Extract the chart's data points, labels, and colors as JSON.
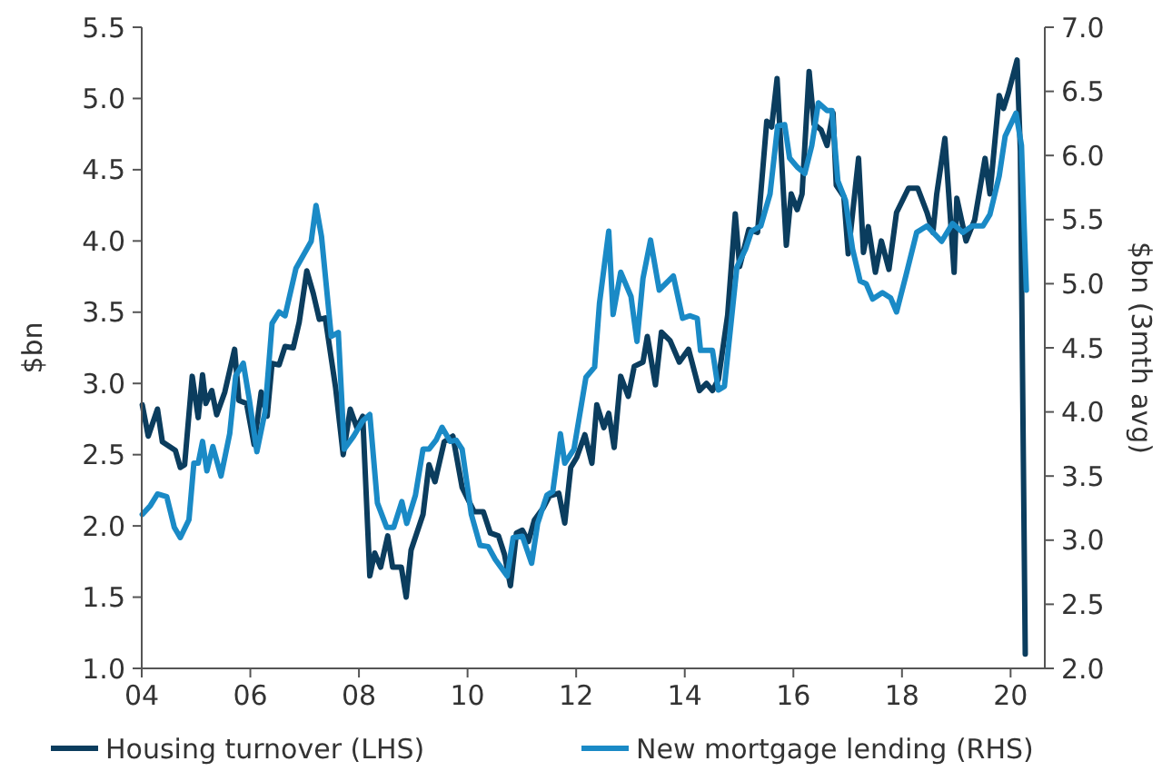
{
  "chart_data": {
    "type": "line",
    "ylabel": "$bn",
    "y2label": "$bn (3mth avg)",
    "legend": "bottom",
    "grid": false,
    "xlim": [
      2004,
      2020.63
    ],
    "xticks": [
      {
        "value": 2004,
        "label": "04"
      },
      {
        "value": 2006,
        "label": "06"
      },
      {
        "value": 2008,
        "label": "08"
      },
      {
        "value": 2010,
        "label": "10"
      },
      {
        "value": 2012,
        "label": "12"
      },
      {
        "value": 2014,
        "label": "14"
      },
      {
        "value": 2016,
        "label": "16"
      },
      {
        "value": 2018,
        "label": "18"
      },
      {
        "value": 2020,
        "label": "20"
      }
    ],
    "ylim": [
      1,
      5.5
    ],
    "yticks": [
      {
        "value": 1,
        "label": "1.0"
      },
      1.5,
      {
        "value": 2,
        "label": "2.0"
      },
      2.5,
      {
        "value": 3,
        "label": "3.0"
      },
      3.5,
      {
        "value": 4,
        "label": "4.0"
      },
      4.5,
      {
        "value": 5,
        "label": "5.0"
      },
      5.5
    ],
    "y2lim": [
      2,
      7
    ],
    "y2ticks": [
      {
        "value": 2,
        "label": "2.0"
      },
      2.5,
      {
        "value": 3,
        "label": "3.0"
      },
      3.5,
      {
        "value": 4,
        "label": "4.0"
      },
      4.5,
      {
        "value": 5,
        "label": "5.0"
      },
      5.5,
      {
        "value": 6,
        "label": "6.0"
      },
      6.5,
      {
        "value": 7,
        "label": "7.0"
      }
    ],
    "series": [
      {
        "name": "Housing turnover (LHS)",
        "color": "#0b3d5e",
        "x": [
          2004.01,
          2004.12,
          2004.29,
          2004.38,
          2004.62,
          2004.71,
          2004.79,
          2004.93,
          2005.04,
          2005.12,
          2005.18,
          2005.29,
          2005.38,
          2005.53,
          2005.71,
          2005.79,
          2005.93,
          2006.07,
          2006.2,
          2006.31,
          2006.4,
          2006.53,
          2006.64,
          2006.79,
          2006.9,
          2007.04,
          2007.16,
          2007.27,
          2007.38,
          2007.57,
          2007.71,
          2007.84,
          2007.96,
          2008.07,
          2008.2,
          2008.29,
          2008.4,
          2008.53,
          2008.62,
          2008.78,
          2008.87,
          2008.96,
          2009.18,
          2009.29,
          2009.4,
          2009.57,
          2009.73,
          2009.9,
          2010.12,
          2010.29,
          2010.42,
          2010.57,
          2010.68,
          2010.79,
          2010.9,
          2011.01,
          2011.12,
          2011.23,
          2011.4,
          2011.51,
          2011.68,
          2011.79,
          2011.9,
          2012.01,
          2012.16,
          2012.29,
          2012.38,
          2012.51,
          2012.6,
          2012.7,
          2012.82,
          2012.96,
          2013.07,
          2013.23,
          2013.31,
          2013.46,
          2013.57,
          2013.73,
          2013.9,
          2014.07,
          2014.27,
          2014.4,
          2014.51,
          2014.62,
          2014.79,
          2014.93,
          2015.01,
          2015.18,
          2015.34,
          2015.51,
          2015.6,
          2015.7,
          2015.87,
          2015.96,
          2016.07,
          2016.16,
          2016.29,
          2016.38,
          2016.51,
          2016.62,
          2016.73,
          2016.79,
          2016.93,
          2017.01,
          2017.2,
          2017.29,
          2017.38,
          2017.51,
          2017.62,
          2017.76,
          2017.9,
          2018.12,
          2018.29,
          2018.46,
          2018.57,
          2018.64,
          2018.79,
          2018.96,
          2019.01,
          2019.18,
          2019.34,
          2019.53,
          2019.62,
          2019.79,
          2019.87,
          2019.96,
          2020.12,
          2020.18,
          2020.27
        ],
        "values": [
          2.85,
          2.63,
          2.82,
          2.59,
          2.53,
          2.41,
          2.43,
          3.05,
          2.76,
          3.06,
          2.86,
          2.95,
          2.78,
          2.94,
          3.24,
          2.88,
          2.86,
          2.57,
          2.94,
          2.77,
          3.14,
          3.13,
          3.26,
          3.25,
          3.43,
          3.79,
          3.63,
          3.45,
          3.46,
          2.97,
          2.5,
          2.82,
          2.69,
          2.77,
          1.65,
          1.81,
          1.71,
          1.93,
          1.71,
          1.71,
          1.5,
          1.83,
          2.08,
          2.43,
          2.31,
          2.59,
          2.63,
          2.27,
          2.1,
          2.1,
          1.95,
          1.93,
          1.8,
          1.58,
          1.95,
          1.97,
          1.89,
          2.04,
          2.13,
          2.21,
          2.23,
          2.02,
          2.41,
          2.48,
          2.64,
          2.44,
          2.85,
          2.69,
          2.79,
          2.55,
          3.05,
          2.91,
          3.12,
          3.15,
          3.33,
          2.99,
          3.36,
          3.3,
          3.15,
          3.24,
          2.95,
          3.0,
          2.95,
          3.03,
          3.48,
          4.19,
          3.82,
          4.08,
          4.06,
          4.84,
          4.8,
          5.14,
          3.97,
          4.33,
          4.22,
          4.33,
          5.19,
          4.82,
          4.78,
          4.67,
          4.9,
          4.39,
          4.31,
          3.91,
          4.58,
          3.92,
          4.1,
          3.78,
          4.0,
          3.8,
          4.2,
          4.37,
          4.37,
          4.2,
          4.06,
          4.33,
          4.72,
          3.78,
          4.3,
          4.0,
          4.15,
          4.58,
          4.33,
          5.02,
          4.93,
          5.04,
          5.27,
          4.63,
          1.1
        ]
      },
      {
        "name": "New mortgage lending (RHS)",
        "color": "#1a8ac6",
        "axis": "y2",
        "x": [
          2004.01,
          2004.16,
          2004.29,
          2004.46,
          2004.6,
          2004.71,
          2004.87,
          2004.96,
          2005.04,
          2005.12,
          2005.2,
          2005.31,
          2005.46,
          2005.62,
          2005.73,
          2005.87,
          2005.98,
          2006.12,
          2006.27,
          2006.4,
          2006.53,
          2006.64,
          2006.84,
          2007.12,
          2007.21,
          2007.31,
          2007.49,
          2007.62,
          2007.73,
          2007.9,
          2008.07,
          2008.2,
          2008.34,
          2008.51,
          2008.64,
          2008.79,
          2008.88,
          2009.04,
          2009.18,
          2009.29,
          2009.42,
          2009.53,
          2009.68,
          2009.79,
          2009.9,
          2010.07,
          2010.23,
          2010.38,
          2010.51,
          2010.73,
          2010.84,
          2011.01,
          2011.18,
          2011.29,
          2011.46,
          2011.57,
          2011.71,
          2011.79,
          2011.96,
          2012.18,
          2012.34,
          2012.43,
          2012.6,
          2012.68,
          2012.82,
          2013.01,
          2013.12,
          2013.23,
          2013.37,
          2013.53,
          2013.79,
          2013.96,
          2014.09,
          2014.23,
          2014.29,
          2014.51,
          2014.62,
          2014.73,
          2014.96,
          2015.12,
          2015.23,
          2015.4,
          2015.57,
          2015.71,
          2015.84,
          2015.93,
          2016.07,
          2016.21,
          2016.34,
          2016.46,
          2016.62,
          2016.71,
          2016.82,
          2016.96,
          2017.09,
          2017.23,
          2017.34,
          2017.46,
          2017.64,
          2017.79,
          2017.9,
          2018.07,
          2018.27,
          2018.46,
          2018.73,
          2018.93,
          2019.12,
          2019.29,
          2019.49,
          2019.62,
          2019.79,
          2019.9,
          2020.1,
          2020.2,
          2020.29
        ],
        "values": [
          3.2,
          3.27,
          3.36,
          3.34,
          3.1,
          3.02,
          3.16,
          3.6,
          3.6,
          3.77,
          3.54,
          3.73,
          3.5,
          3.83,
          4.28,
          4.38,
          4.1,
          3.69,
          4.0,
          4.69,
          4.78,
          4.75,
          5.12,
          5.33,
          5.61,
          5.37,
          4.59,
          4.62,
          3.71,
          3.81,
          3.93,
          3.98,
          3.29,
          3.1,
          3.1,
          3.3,
          3.13,
          3.35,
          3.71,
          3.71,
          3.78,
          3.88,
          3.77,
          3.78,
          3.71,
          3.2,
          2.96,
          2.95,
          2.85,
          2.72,
          3.02,
          3.03,
          2.82,
          3.13,
          3.35,
          3.38,
          3.83,
          3.6,
          3.71,
          4.27,
          4.35,
          4.85,
          5.41,
          4.76,
          5.09,
          4.9,
          4.55,
          5.04,
          5.34,
          4.95,
          5.06,
          4.73,
          4.75,
          4.73,
          4.48,
          4.48,
          4.17,
          4.2,
          5.13,
          5.27,
          5.41,
          5.45,
          5.7,
          6.23,
          6.24,
          5.98,
          5.91,
          5.86,
          6.08,
          6.41,
          6.35,
          6.35,
          5.8,
          5.65,
          5.27,
          5.02,
          5.0,
          4.88,
          4.93,
          4.89,
          4.78,
          5.06,
          5.4,
          5.45,
          5.33,
          5.47,
          5.4,
          5.45,
          5.45,
          5.54,
          5.84,
          6.15,
          6.33,
          6.08,
          4.95
        ]
      }
    ]
  }
}
